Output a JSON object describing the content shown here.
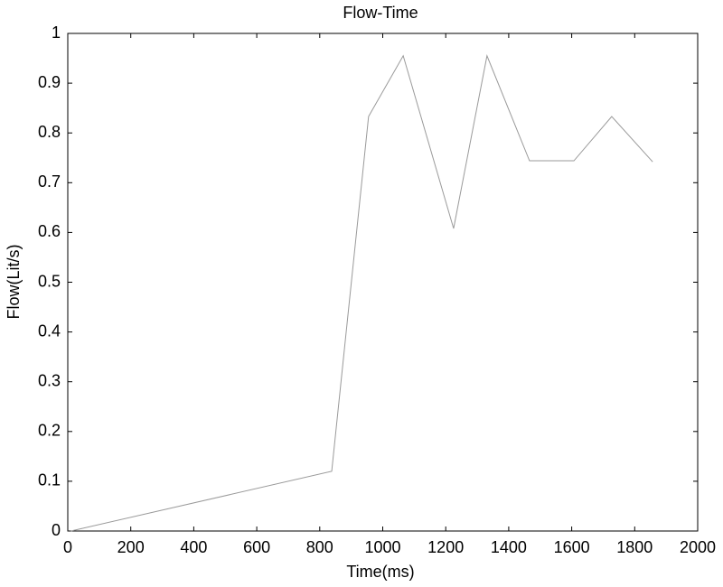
{
  "chart_data": {
    "type": "line",
    "title": "Flow-Time",
    "x_label": "Time(ms)",
    "y_label": "Flow(Lit/s)",
    "x": [
      10,
      838,
      955,
      1065,
      1225,
      1331,
      1466,
      1607,
      1727,
      1857
    ],
    "values": [
      0,
      0.12,
      0.833,
      0.955,
      0.608,
      0.955,
      0.744,
      0.744,
      0.833,
      0.742
    ],
    "color": "#9a9a9a",
    "xlim": [
      0,
      2000
    ],
    "xticks": [
      0,
      200,
      400,
      600,
      800,
      1000,
      1200,
      1400,
      1600,
      1800,
      2000
    ],
    "ylim": [
      0,
      1
    ],
    "yticks": [
      0,
      0.1,
      0.2,
      0.3,
      0.4,
      0.5,
      0.6,
      0.7,
      0.8,
      0.9,
      1
    ]
  }
}
